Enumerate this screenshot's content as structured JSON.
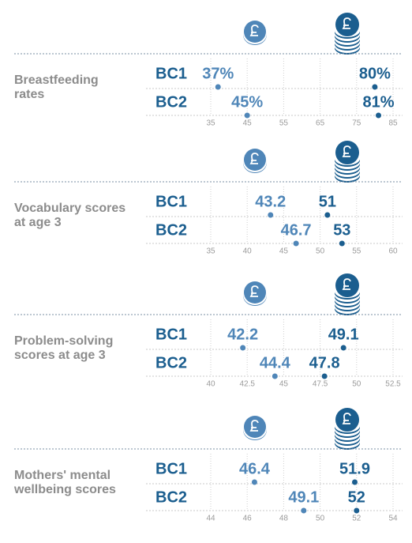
{
  "chart_data": [
    {
      "type": "dot",
      "title": "Breastfeeding rates",
      "categories": [
        "BC1",
        "BC2"
      ],
      "series": [
        {
          "color": "#4f86b8",
          "values": [
            37,
            45
          ],
          "value_labels": [
            "37%",
            "45%"
          ]
        },
        {
          "color": "#1b5e8f",
          "values": [
            80,
            81
          ],
          "value_labels": [
            "80%",
            "81%"
          ]
        }
      ],
      "xlim": [
        35,
        85
      ],
      "xticks": [
        35,
        45,
        55,
        65,
        75,
        85
      ],
      "grid": true
    },
    {
      "type": "dot",
      "title": "Vocabulary scores at age 3",
      "categories": [
        "BC1",
        "BC2"
      ],
      "series": [
        {
          "color": "#4f86b8",
          "values": [
            43.2,
            46.7
          ]
        },
        {
          "color": "#1b5e8f",
          "values": [
            51,
            53
          ]
        }
      ],
      "xlim": [
        35,
        60
      ],
      "xticks": [
        35,
        40,
        45,
        50,
        55,
        60
      ],
      "grid": true
    },
    {
      "type": "dot",
      "title": "Problem-solving scores at age 3",
      "categories": [
        "BC1",
        "BC2"
      ],
      "series": [
        {
          "color": "#4f86b8",
          "values": [
            42.2,
            44.4
          ]
        },
        {
          "color": "#1b5e8f",
          "values": [
            49.1,
            47.8
          ]
        }
      ],
      "xlim": [
        40,
        52.5
      ],
      "xticks": [
        40,
        42.5,
        45,
        47.5,
        50,
        52.5
      ],
      "grid": true
    },
    {
      "type": "dot",
      "title": "Mothers' mental wellbeing scores",
      "categories": [
        "BC1",
        "BC2"
      ],
      "series": [
        {
          "color": "#4f86b8",
          "values": [
            46.4,
            49.1
          ]
        },
        {
          "color": "#1b5e8f",
          "values": [
            51.9,
            52
          ]
        }
      ],
      "xlim": [
        44,
        54
      ],
      "xticks": [
        44,
        46,
        48,
        50,
        52,
        54
      ],
      "grid": true
    }
  ]
}
